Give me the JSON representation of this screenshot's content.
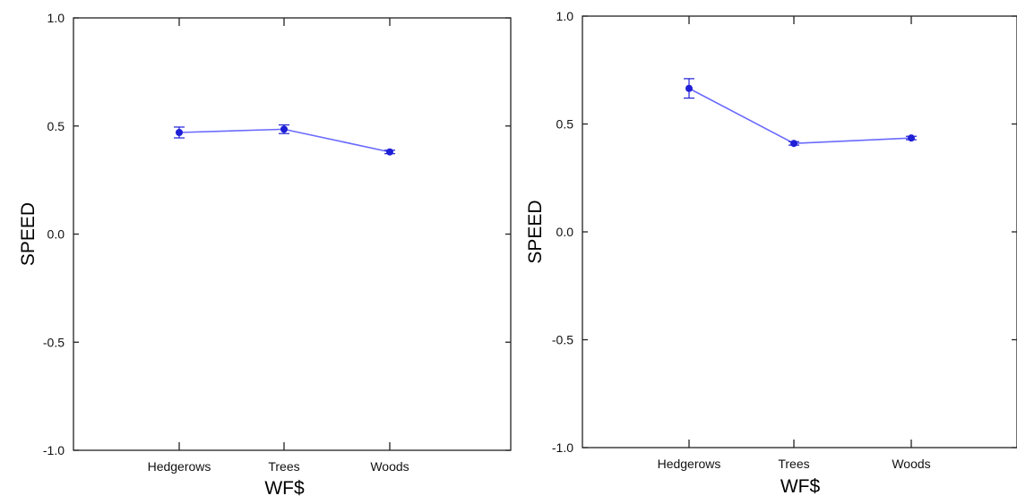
{
  "chart_data": [
    {
      "type": "line",
      "categories": [
        "Hedgerows",
        "Trees",
        "Woods"
      ],
      "series": [
        {
          "values": [
            0.47,
            0.485,
            0.38
          ],
          "error": [
            0.025,
            0.02,
            0.008
          ]
        }
      ],
      "xlabel": "WF$",
      "ylabel": "SPEED",
      "ylim": [
        -1.0,
        1.0
      ],
      "yticks": [
        1.0,
        0.5,
        0.0,
        -0.5,
        -1.0
      ],
      "ytick_labels": [
        "1.0",
        "0.5",
        "0.0",
        "-0.5",
        "-1.0"
      ],
      "grid": false,
      "line_color": "#6a6aff",
      "marker_color": "#1f1fd6"
    },
    {
      "type": "line",
      "categories": [
        "Hedgerows",
        "Trees",
        "Woods"
      ],
      "series": [
        {
          "values": [
            0.665,
            0.41,
            0.435
          ],
          "error": [
            0.045,
            0.008,
            0.008
          ]
        }
      ],
      "xlabel": "WF$",
      "ylabel": "SPEED",
      "ylim": [
        -1.0,
        1.0
      ],
      "yticks": [
        1.0,
        0.5,
        0.0,
        -0.5,
        -1.0
      ],
      "ytick_labels": [
        "1.0",
        "0.5",
        "0.0",
        "-0.5",
        "-1.0"
      ],
      "grid": false,
      "line_color": "#6a6aff",
      "marker_color": "#1f1fd6"
    }
  ]
}
